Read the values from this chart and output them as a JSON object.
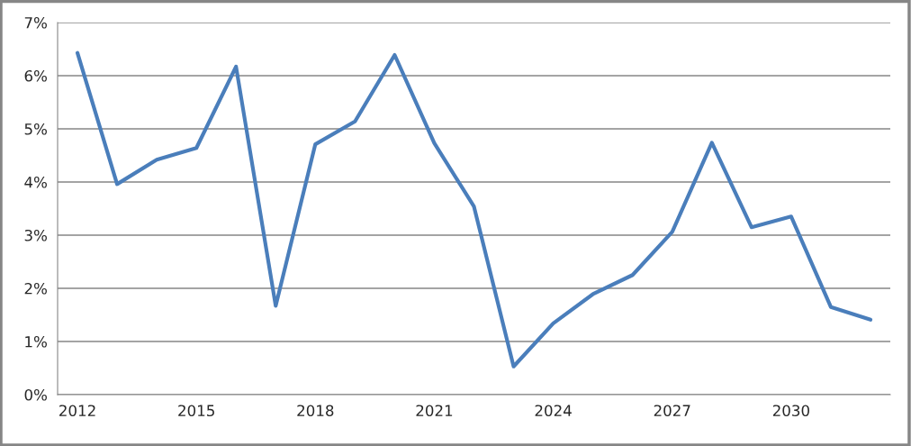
{
  "chart_data": {
    "type": "line",
    "categories": [
      "2012",
      null,
      null,
      "2015",
      null,
      null,
      "2018",
      null,
      null,
      "2021",
      null,
      null,
      "2024",
      null,
      null,
      "2027",
      null,
      null,
      "2030",
      null,
      null
    ],
    "series": [
      {
        "color": "#4a7ebb",
        "values": [
          6.43,
          3.96,
          4.42,
          4.64,
          6.17,
          1.67,
          4.71,
          5.14,
          6.39,
          4.73,
          3.54,
          0.53,
          1.34,
          1.89,
          2.25,
          3.06,
          4.74,
          3.15,
          3.35,
          1.65,
          1.41
        ]
      }
    ],
    "ylim": [
      0,
      7
    ],
    "yticks": [
      {
        "value": 0,
        "label": "0%"
      },
      {
        "value": 1,
        "label": "1%"
      },
      {
        "value": 2,
        "label": "2%"
      },
      {
        "value": 3,
        "label": "3%"
      },
      {
        "value": 4,
        "label": "4%"
      },
      {
        "value": 5,
        "label": "5%"
      },
      {
        "value": 6,
        "label": "6%"
      },
      {
        "value": 7,
        "label": "7%"
      }
    ],
    "grid": "y",
    "marker": "none",
    "line_style": "solid"
  }
}
